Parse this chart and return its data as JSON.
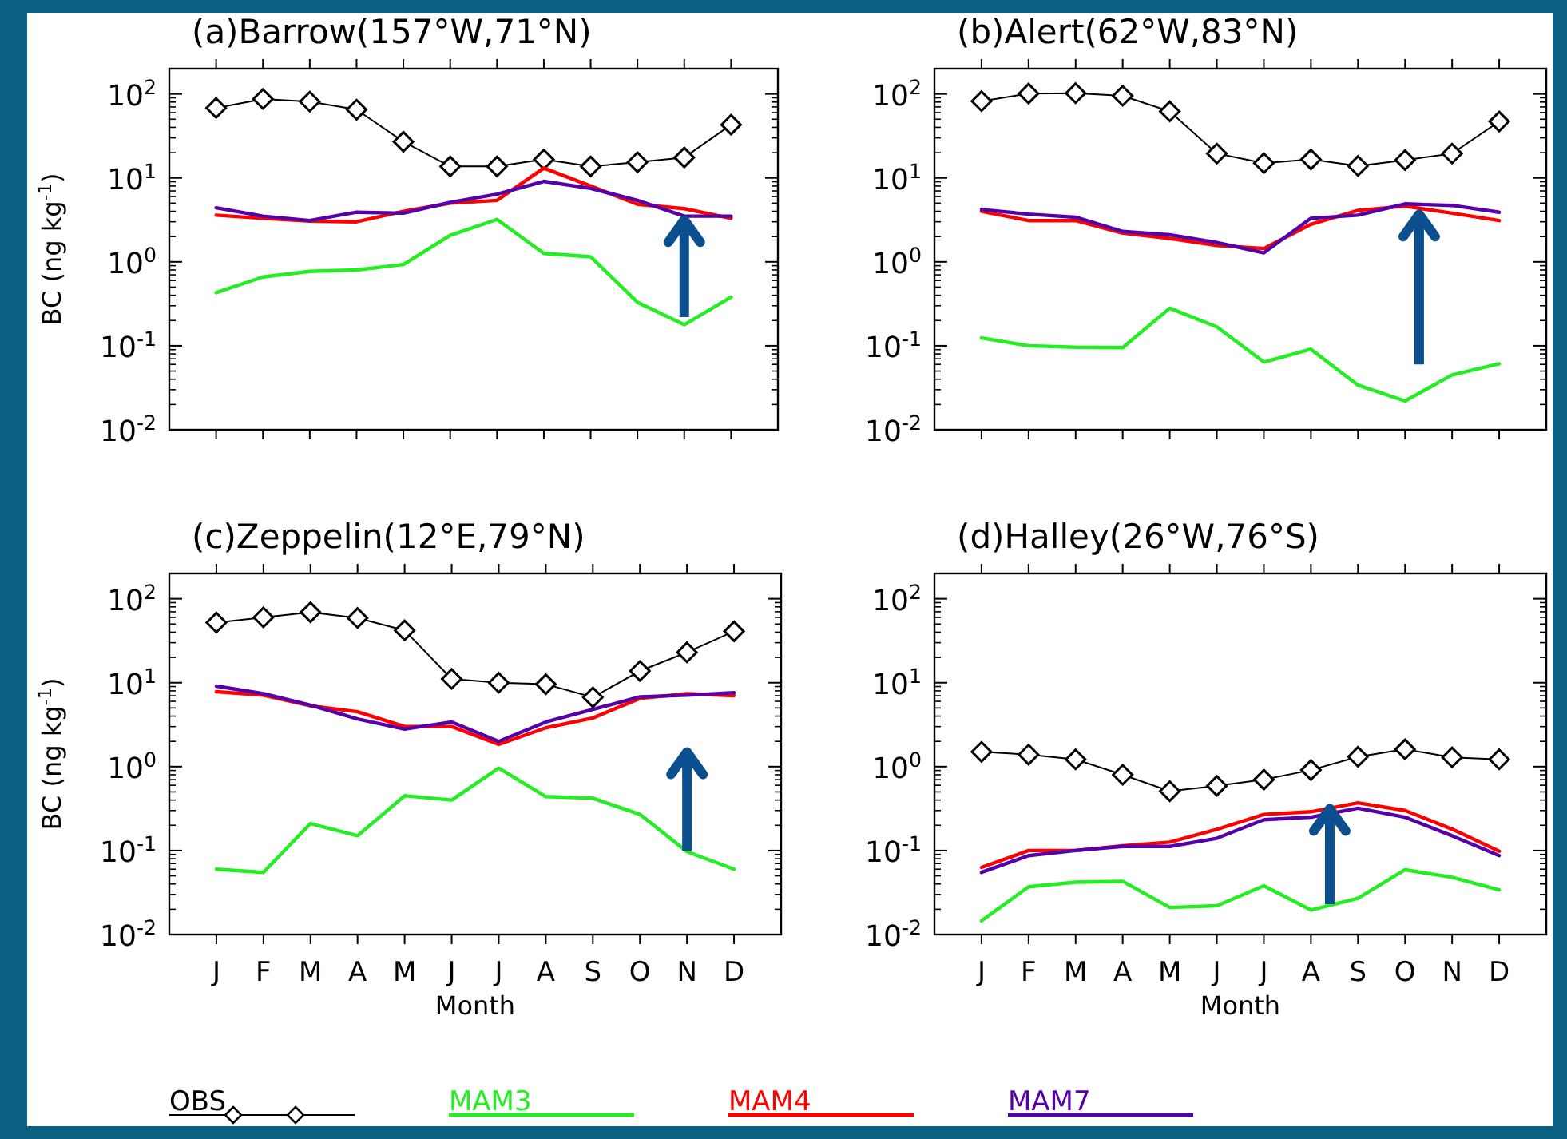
{
  "chart_data": [
    {
      "type": "line",
      "title": "(a)Barrow(157°W,71°N)",
      "ylabel": "BC (ng kg$^{-1}$)",
      "categories": [
        null,
        null,
        null,
        null,
        null,
        null,
        null,
        null,
        null,
        null,
        null,
        null
      ],
      "log": "y",
      "ylim": [
        0.01,
        200
      ],
      "yticks": [
        {
          "value": 0.01,
          "label": "10$^{-2}$"
        },
        {
          "value": 0.1,
          "label": "10$^{-1}$"
        },
        {
          "value": 1,
          "label": "10$^{0}$"
        },
        {
          "value": 10,
          "label": "10$^{1}$"
        },
        {
          "value": 100,
          "label": "10$^{2}$"
        }
      ],
      "tick_labels": "y",
      "grid": false,
      "series": [
        {
          "color": "#000000",
          "marker": "diamond",
          "values": [
            68,
            87,
            81,
            65,
            27,
            13.7,
            13.7,
            16.6,
            13.7,
            15.4,
            17.5,
            43
          ]
        },
        {
          "color": "#22ee22",
          "marker": "none",
          "values": [
            0.43,
            0.66,
            0.77,
            0.8,
            0.93,
            2.07,
            3.2,
            1.26,
            1.15,
            0.33,
            0.178,
            0.38
          ]
        },
        {
          "color": "#ff0000",
          "marker": "none",
          "values": [
            3.6,
            3.3,
            3.05,
            3.0,
            4.0,
            5.0,
            5.4,
            13.1,
            8.0,
            4.85,
            4.3,
            3.3
          ]
        },
        {
          "color": "#5500aa",
          "marker": "none",
          "values": [
            4.4,
            3.5,
            3.1,
            3.9,
            3.8,
            5.1,
            6.4,
            9.1,
            7.5,
            5.4,
            3.5,
            3.5
          ]
        }
      ]
    },
    {
      "type": "line",
      "title": "(b)Alert(62°W,83°N)",
      "categories": [
        null,
        null,
        null,
        null,
        null,
        null,
        null,
        null,
        null,
        null,
        null,
        null
      ],
      "log": "y",
      "ylim": [
        0.01,
        200
      ],
      "yticks": [
        {
          "value": 0.01,
          "label": "10$^{-2}$"
        },
        {
          "value": 0.1,
          "label": "10$^{-1}$"
        },
        {
          "value": 1,
          "label": "10$^{0}$"
        },
        {
          "value": 10,
          "label": "10$^{1}$"
        },
        {
          "value": 100,
          "label": "10$^{2}$"
        }
      ],
      "tick_labels": "y",
      "grid": false,
      "series": [
        {
          "color": "#000000",
          "marker": "diamond",
          "values": [
            82,
            101,
            102,
            95,
            62,
            19.5,
            15,
            16.6,
            13.9,
            16.3,
            19.5,
            47
          ]
        },
        {
          "color": "#22ee22",
          "marker": "none",
          "values": [
            0.124,
            0.1,
            0.096,
            0.095,
            0.28,
            0.168,
            0.064,
            0.091,
            0.034,
            0.022,
            0.045,
            0.061
          ]
        },
        {
          "color": "#ff0000",
          "marker": "none",
          "values": [
            4.0,
            3.1,
            3.1,
            2.2,
            1.9,
            1.57,
            1.44,
            2.8,
            4.1,
            4.6,
            3.8,
            3.1
          ]
        },
        {
          "color": "#5500aa",
          "marker": "none",
          "values": [
            4.2,
            3.7,
            3.4,
            2.3,
            2.1,
            1.7,
            1.28,
            3.3,
            3.6,
            4.9,
            4.7,
            3.9
          ]
        }
      ]
    },
    {
      "type": "line",
      "title": "(c)Zeppelin(12°E,79°N)",
      "xlabel": "Month",
      "ylabel": "BC (ng kg$^{-1}$)",
      "categories": [
        "J",
        "F",
        "M",
        "A",
        "M",
        "J",
        "J",
        "A",
        "S",
        "O",
        "N",
        "D"
      ],
      "log": "y",
      "ylim": [
        0.01,
        200
      ],
      "yticks": [
        {
          "value": 0.01,
          "label": "10$^{-2}$"
        },
        {
          "value": 0.1,
          "label": "10$^{-1}$"
        },
        {
          "value": 1,
          "label": "10$^{0}$"
        },
        {
          "value": 10,
          "label": "10$^{1}$"
        },
        {
          "value": 100,
          "label": "10$^{2}$"
        }
      ],
      "grid": false,
      "series": [
        {
          "color": "#000000",
          "marker": "diamond",
          "values": [
            52,
            60,
            69,
            59,
            42,
            11.1,
            10.0,
            9.6,
            6.7,
            13.8,
            23,
            41
          ]
        },
        {
          "color": "#22ee22",
          "marker": "none",
          "values": [
            0.06,
            0.055,
            0.21,
            0.15,
            0.45,
            0.4,
            0.96,
            0.44,
            0.42,
            0.27,
            0.097,
            0.06
          ]
        },
        {
          "color": "#ff0000",
          "marker": "none",
          "values": [
            7.8,
            7.1,
            5.3,
            4.5,
            3.0,
            3.0,
            1.84,
            2.9,
            3.8,
            6.5,
            7.4,
            7.0
          ]
        },
        {
          "color": "#5500aa",
          "marker": "none",
          "values": [
            9.1,
            7.4,
            5.4,
            3.7,
            2.8,
            3.4,
            2.0,
            3.4,
            4.8,
            6.8,
            7.1,
            7.6
          ]
        }
      ]
    },
    {
      "type": "line",
      "title": "(d)Halley(26°W,76°S)",
      "xlabel": "Month",
      "categories": [
        "J",
        "F",
        "M",
        "A",
        "M",
        "J",
        "J",
        "A",
        "S",
        "O",
        "N",
        "D"
      ],
      "log": "y",
      "ylim": [
        0.01,
        200
      ],
      "yticks": [
        {
          "value": 0.01,
          "label": "10$^{-2}$"
        },
        {
          "value": 0.1,
          "label": "10$^{-1}$"
        },
        {
          "value": 1,
          "label": "10$^{0}$"
        },
        {
          "value": 10,
          "label": "10$^{1}$"
        },
        {
          "value": 100,
          "label": "10$^{2}$"
        }
      ],
      "grid": false,
      "legend": "bottom",
      "series": [
        {
          "name": "OBS",
          "color": "#000000",
          "marker": "diamond",
          "values": [
            1.5,
            1.39,
            1.22,
            0.8,
            0.51,
            0.59,
            0.7,
            0.91,
            1.31,
            1.61,
            1.29,
            1.22
          ]
        },
        {
          "name": "MAM3",
          "color": "#22ee22",
          "marker": "none",
          "values": [
            0.0146,
            0.037,
            0.042,
            0.043,
            0.021,
            0.022,
            0.038,
            0.0196,
            0.027,
            0.059,
            0.048,
            0.034
          ]
        },
        {
          "name": "MAM4",
          "color": "#ff0000",
          "marker": "none",
          "values": [
            0.063,
            0.1,
            0.1,
            0.114,
            0.126,
            0.179,
            0.27,
            0.29,
            0.37,
            0.3,
            0.18,
            0.098
          ]
        },
        {
          "name": "MAM7",
          "color": "#5500aa",
          "marker": "none",
          "values": [
            0.055,
            0.087,
            0.1,
            0.112,
            0.112,
            0.14,
            0.233,
            0.25,
            0.32,
            0.25,
            0.15,
            0.087
          ]
        }
      ]
    }
  ]
}
